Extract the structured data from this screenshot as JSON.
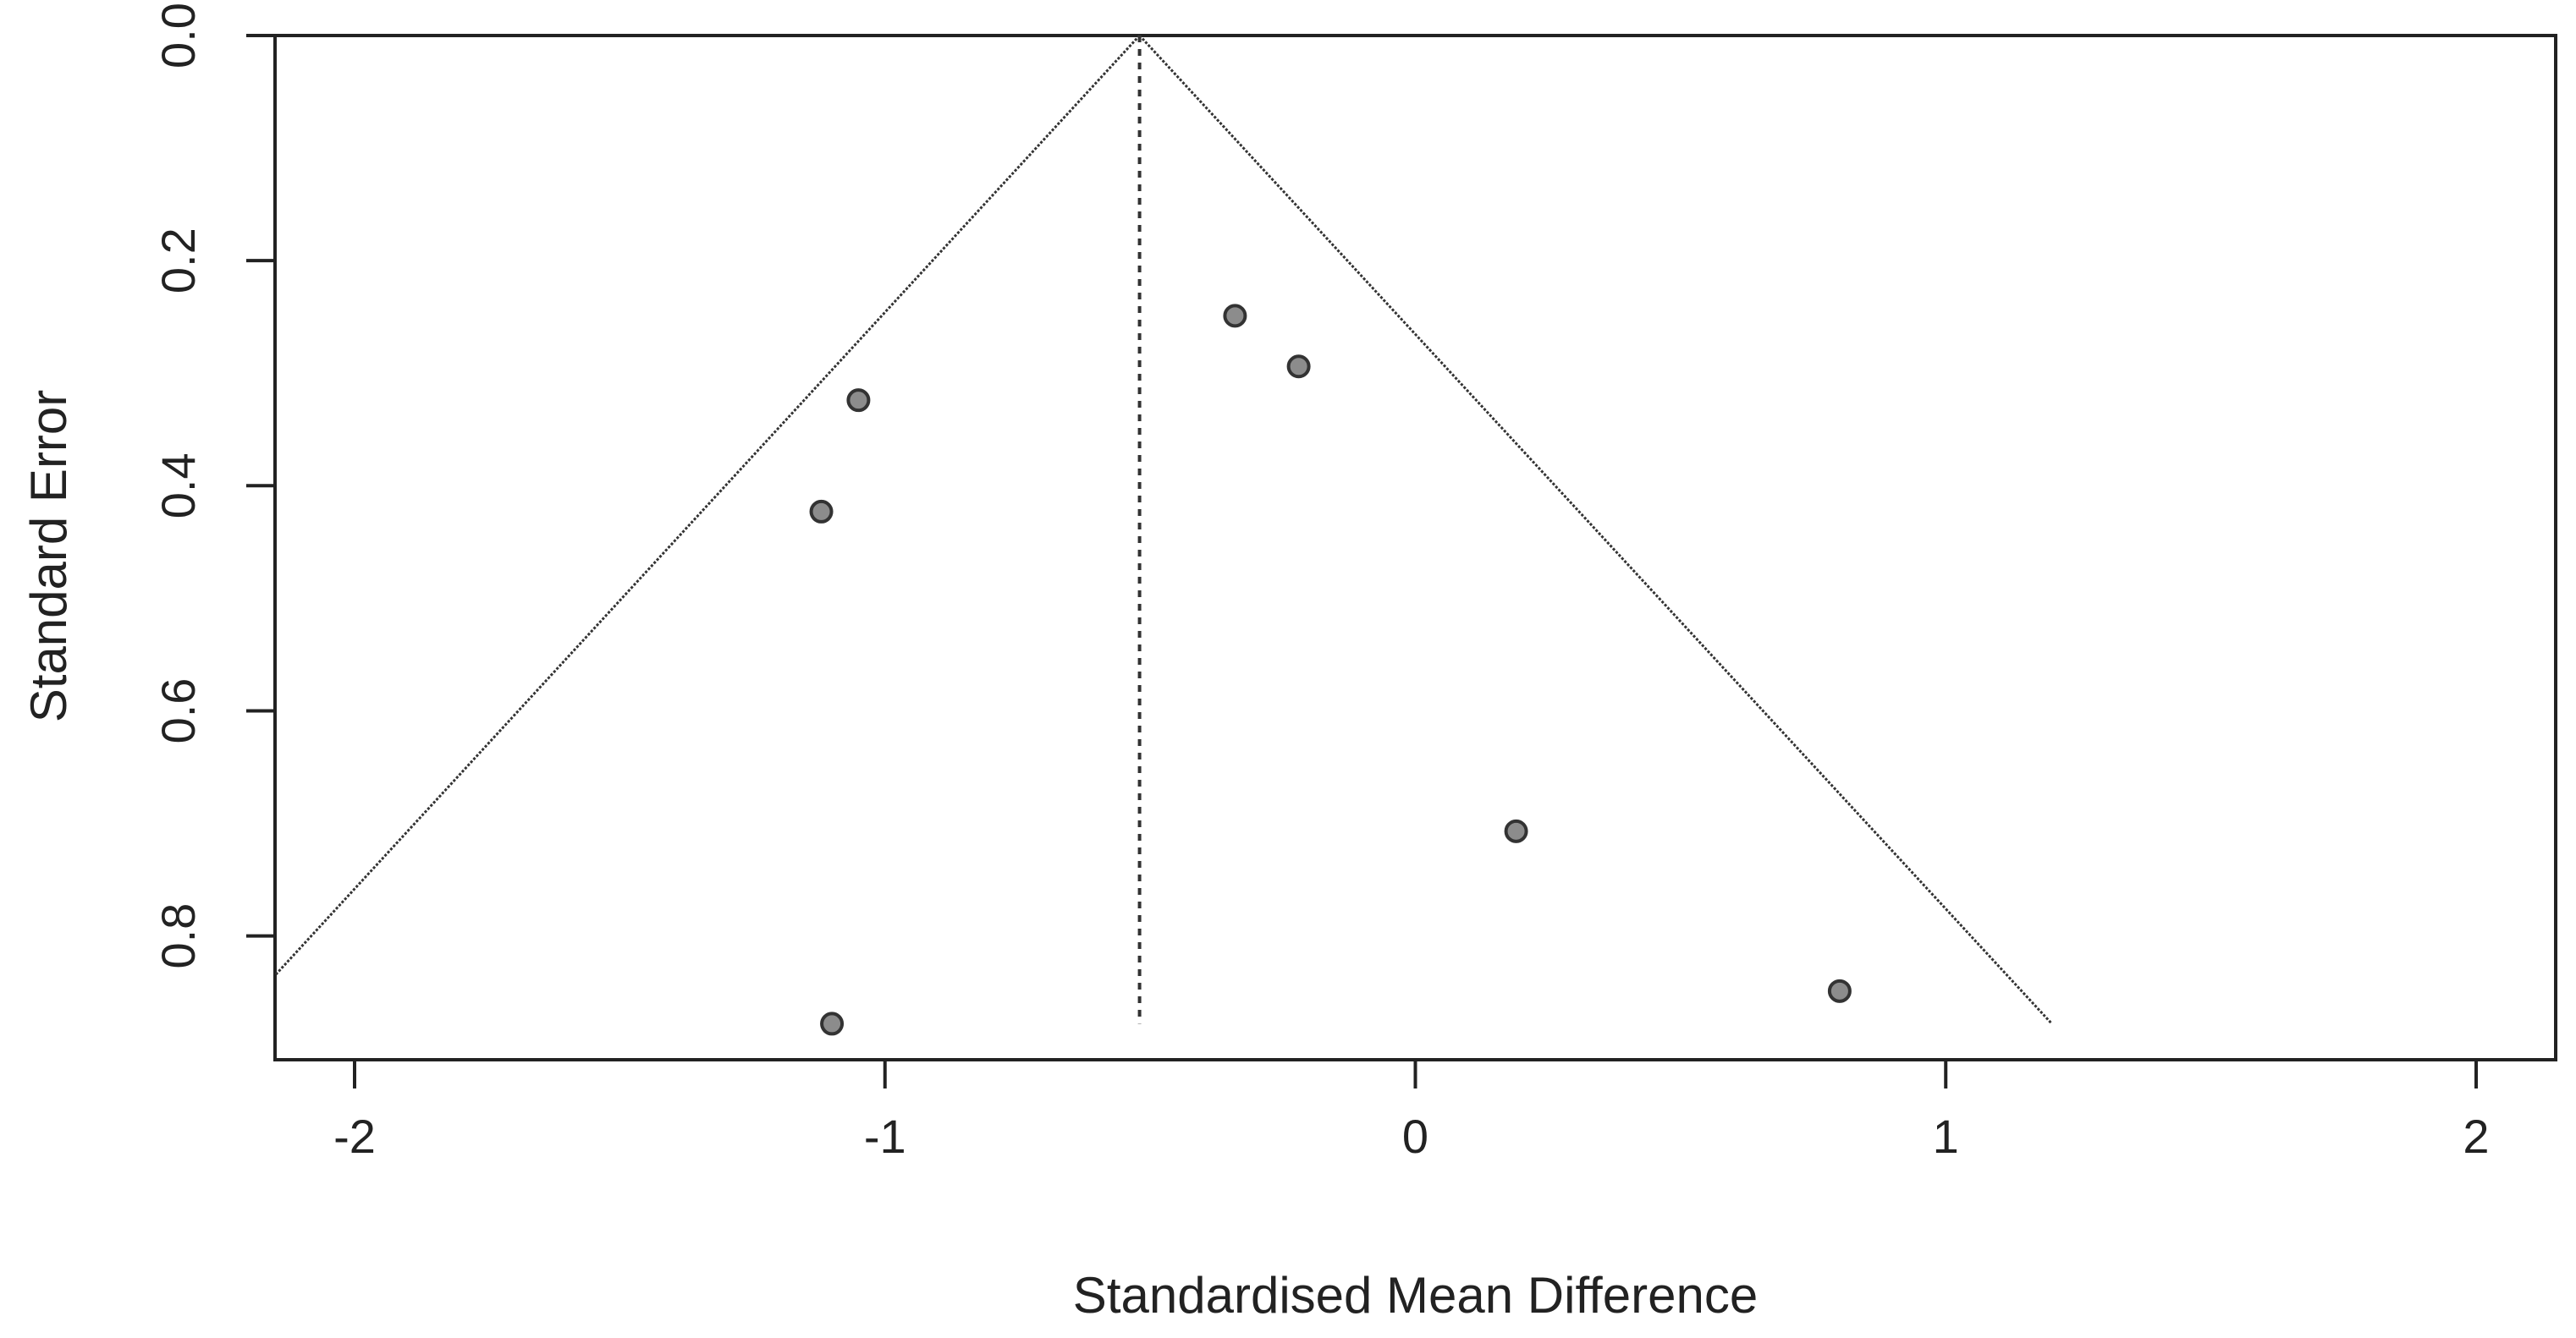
{
  "chart_data": {
    "type": "scatter",
    "subtype": "funnel-plot",
    "title": "",
    "xlabel": "Standardised Mean Difference",
    "ylabel": "Standard Error",
    "xlim": [
      -2.15,
      2.15
    ],
    "ylim": [
      0.0,
      0.91
    ],
    "y_reversed": true,
    "x_ticks": [
      -2,
      -1,
      0,
      1,
      2
    ],
    "x_tick_labels": [
      "-2",
      "-1",
      "0",
      "1",
      "2"
    ],
    "y_ticks": [
      0.0,
      0.2,
      0.4,
      0.6,
      0.8
    ],
    "y_tick_labels": [
      "0.0",
      "0.2",
      "0.4",
      "0.6",
      "0.8"
    ],
    "grid": false,
    "legend": "none",
    "pooled_estimate": -0.52,
    "funnel_apex": [
      -0.52,
      0.0
    ],
    "funnel_left_end": [
      -2.15,
      0.835
    ],
    "funnel_right_end": [
      1.2,
      0.878
    ],
    "reference_line_bottom_se": 0.878,
    "points": [
      {
        "x": -1.05,
        "y": 0.324
      },
      {
        "x": -1.12,
        "y": 0.423
      },
      {
        "x": -0.34,
        "y": 0.249
      },
      {
        "x": -0.22,
        "y": 0.294
      },
      {
        "x": 0.19,
        "y": 0.707
      },
      {
        "x": 0.8,
        "y": 0.849
      },
      {
        "x": -1.1,
        "y": 0.878
      }
    ],
    "colors": {
      "point_fill": "#8c8c8c",
      "point_stroke": "#333333",
      "lines": "#333333",
      "frame": "#222222"
    }
  }
}
